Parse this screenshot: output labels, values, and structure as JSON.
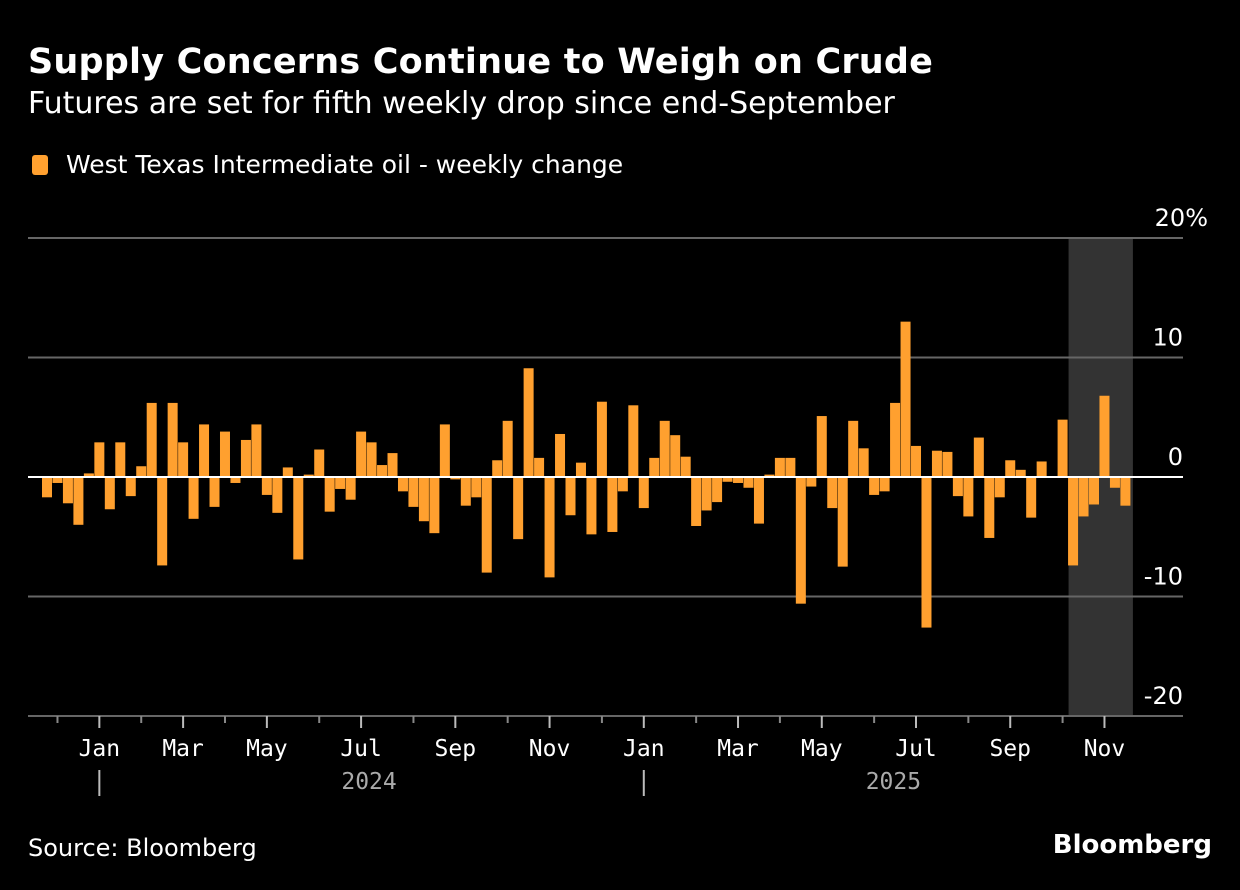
{
  "header": {
    "title": "Supply Concerns Continue to Weigh on Crude",
    "subtitle": "Futures are set for fifth weekly drop since end-September"
  },
  "legend": {
    "label": "West Texas Intermediate oil - weekly change",
    "color": "#ffa02f"
  },
  "footer": {
    "source": "Source: Bloomberg",
    "brand": "Bloomberg"
  },
  "colors": {
    "bar": "#ffa02f",
    "highlight_band": "#333333",
    "grid": "#666666",
    "zero_line": "#ffffff"
  },
  "chart_data": {
    "type": "bar",
    "title": "Supply Concerns Continue to Weigh on Crude",
    "subtitle": "Futures are set for fifth weekly drop since end-September",
    "xlabel": "",
    "ylabel": "",
    "series": [
      {
        "name": "West Texas Intermediate oil - weekly change",
        "values": [
          -1.7,
          -0.5,
          -2.2,
          -4.0,
          0.3,
          2.9,
          -2.7,
          2.9,
          -1.6,
          0.9,
          6.2,
          -7.4,
          6.2,
          2.9,
          -3.5,
          4.4,
          -2.5,
          3.8,
          -0.5,
          3.1,
          4.4,
          -1.5,
          -3.0,
          0.8,
          -6.9,
          0.2,
          2.3,
          -2.9,
          -1.0,
          -1.9,
          3.8,
          2.9,
          1.0,
          2.0,
          -1.2,
          -2.5,
          -3.7,
          -4.7,
          4.4,
          -0.2,
          -2.4,
          -1.7,
          -8.0,
          1.4,
          4.7,
          -5.2,
          9.1,
          1.6,
          -8.4,
          3.6,
          -3.2,
          1.2,
          -4.8,
          6.3,
          -4.6,
          -1.2,
          6.0,
          -2.6,
          1.6,
          4.7,
          3.5,
          1.7,
          -4.1,
          -2.8,
          -2.1,
          -0.4,
          -0.5,
          -0.9,
          -3.9,
          0.2,
          1.6,
          1.6,
          -10.6,
          -0.8,
          5.1,
          -2.6,
          -7.5,
          4.7,
          2.4,
          -1.5,
          -1.2,
          6.2,
          13.0,
          2.6,
          -12.6,
          2.2,
          2.1,
          -1.6,
          -3.3,
          3.3,
          -5.1,
          -1.7,
          1.4,
          0.6,
          -3.4,
          1.3,
          0.0,
          4.8,
          -7.4,
          -3.3,
          -2.3,
          6.8,
          -0.9,
          -2.4
        ]
      }
    ],
    "yticks": [
      "20%",
      "10",
      "0",
      "-10",
      "-20"
    ],
    "ytick_values": [
      20,
      10,
      0,
      -10,
      -20
    ],
    "ylim": [
      -20,
      20
    ],
    "xticks": [
      "Jan",
      "Mar",
      "May",
      "Jul",
      "Sep",
      "Nov",
      "Jan",
      "Mar",
      "May",
      "Jul",
      "Sep",
      "Nov"
    ],
    "xtick_week_index": [
      5,
      13,
      21,
      30,
      39,
      48,
      57,
      66,
      74,
      83,
      92,
      101
    ],
    "minor_tick_week_index": [
      1,
      9,
      17,
      26,
      35,
      44,
      53,
      62,
      70,
      79,
      88,
      97
    ],
    "years": [
      {
        "label": "2024",
        "start_index": 5
      },
      {
        "label": "2025",
        "start_index": 57
      }
    ],
    "highlight_range_index": [
      98,
      103
    ],
    "highlight_note": "shaded band from end-September to latest week",
    "grid": true,
    "legend_position": "top-left"
  }
}
